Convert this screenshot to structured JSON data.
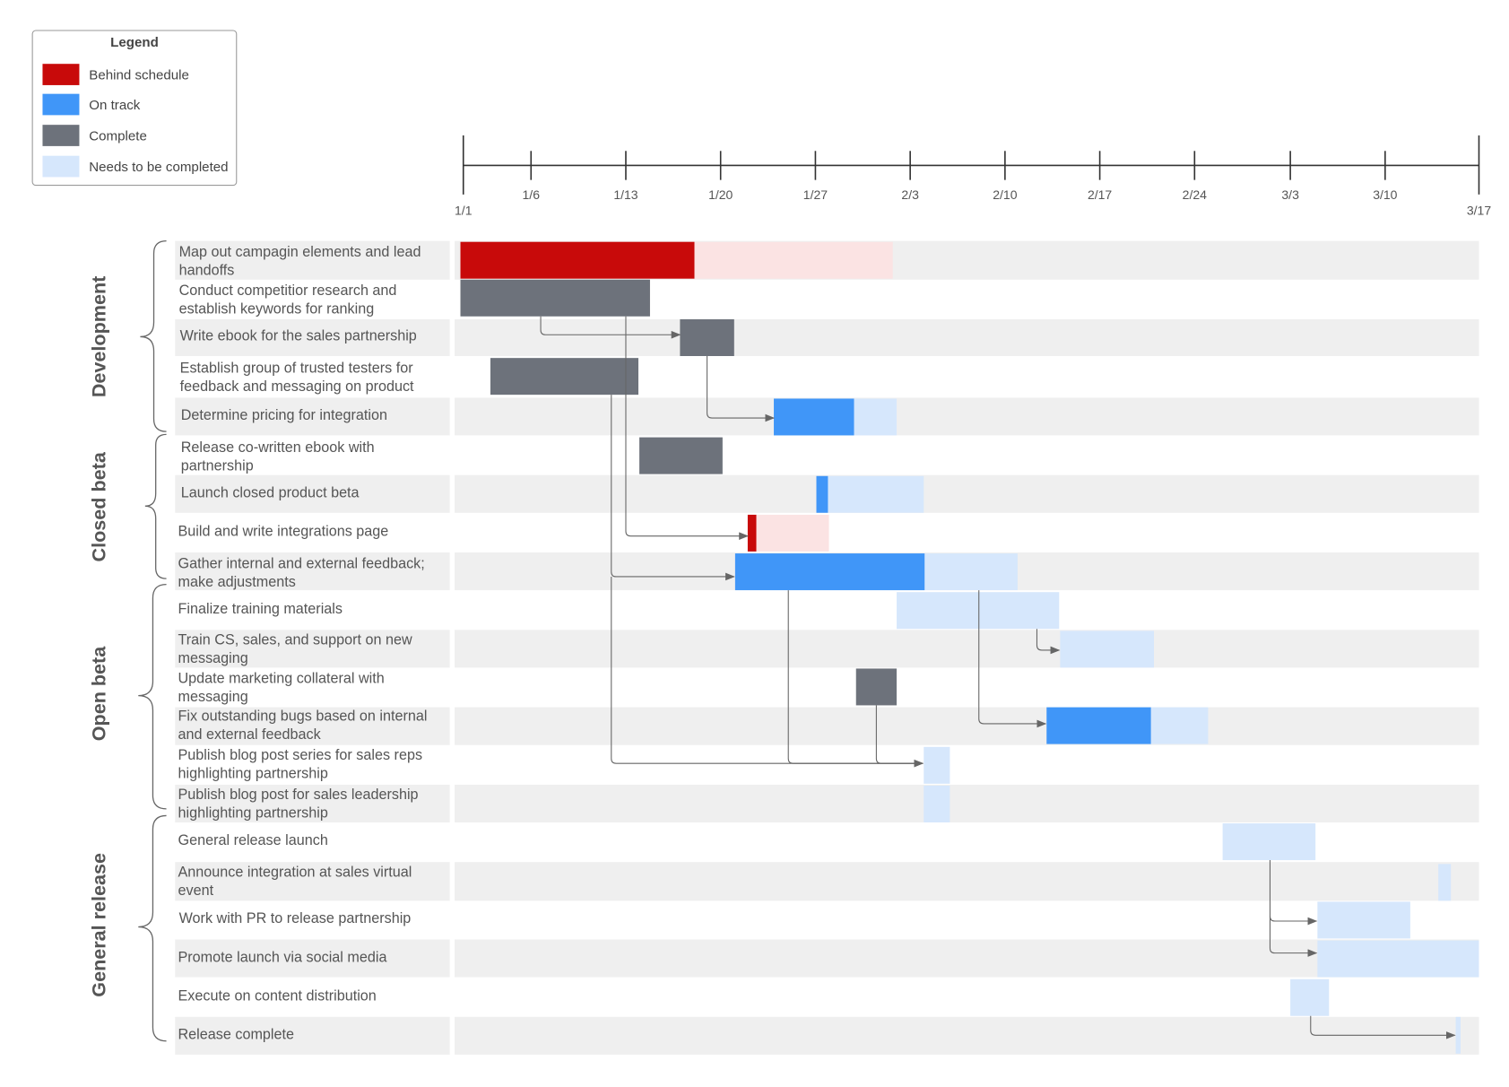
{
  "legend": {
    "title": "Legend",
    "items": [
      {
        "label": "Behind schedule",
        "color": "#c80a0a"
      },
      {
        "label": "On track",
        "color": "#4096f8"
      },
      {
        "label": "Complete",
        "color": "#6d727b"
      },
      {
        "label": "Needs to be completed",
        "color": "#d6e7fc"
      }
    ]
  },
  "timeline": {
    "ticks": [
      "1/1",
      "1/6",
      "1/13",
      "1/20",
      "1/27",
      "2/3",
      "2/10",
      "2/17",
      "2/24",
      "3/3",
      "3/10",
      "3/17"
    ]
  },
  "phases": [
    {
      "name": "Development"
    },
    {
      "name": "Closed beta"
    },
    {
      "name": "Open beta"
    },
    {
      "name": "General release"
    }
  ],
  "tasks": [
    {
      "label": "Map out campagin elements and lead handoffs"
    },
    {
      "label": "Conduct competitior research and establish keywords for ranking"
    },
    {
      "label": "Write ebook for the sales partnership"
    },
    {
      "label": "Establish group of trusted testers for feedback and messaging on product"
    },
    {
      "label": "Determine pricing for integration"
    },
    {
      "label": "Release co-written ebook with partnership"
    },
    {
      "label": "Launch closed product beta"
    },
    {
      "label": "Build and write integrations page"
    },
    {
      "label": "Gather internal and external feedback; make adjustments"
    },
    {
      "label": "Finalize training materials"
    },
    {
      "label": "Train CS, sales, and support on new messaging"
    },
    {
      "label": "Update marketing collateral with messaging"
    },
    {
      "label": "Fix outstanding bugs based on internal and external feedback"
    },
    {
      "label": "Publish blog post series for sales reps highlighting partnership"
    },
    {
      "label": "Publish blog post for sales leadership highlighting partnership"
    },
    {
      "label": "General release launch"
    },
    {
      "label": "Announce integration at sales virtual event"
    },
    {
      "label": "Work with PR to release partnership"
    },
    {
      "label": "Promote launch via social media"
    },
    {
      "label": "Execute on content distribution"
    },
    {
      "label": "Release complete"
    }
  ],
  "colors": {
    "behind": "#c80a0a",
    "behind_remaining": "#fbe3e3",
    "on_track": "#4096f8",
    "complete": "#6d727b",
    "needs": "#d6e7fc",
    "row_shade": "#efefef",
    "connector": "#666666"
  }
}
